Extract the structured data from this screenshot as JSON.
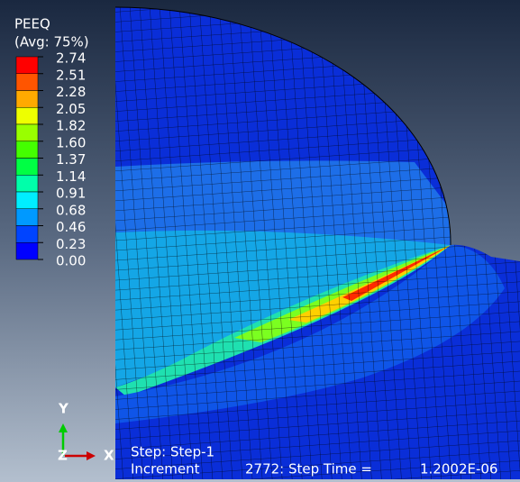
{
  "legend": {
    "title": "PEEQ",
    "subtitle": "(Avg: 75%)",
    "levels": [
      "2.74",
      "2.51",
      "2.28",
      "2.05",
      "1.82",
      "1.60",
      "1.37",
      "1.14",
      "0.91",
      "0.68",
      "0.46",
      "0.23",
      "0.00"
    ],
    "colors": [
      "#ff0000",
      "#ff5500",
      "#ffaa00",
      "#eeff00",
      "#99ff00",
      "#44ff00",
      "#00ff44",
      "#00ffaa",
      "#00eeff",
      "#0099ff",
      "#0044ff",
      "#0000ff"
    ]
  },
  "triad": {
    "y": "Y",
    "z": "Z",
    "x": "X"
  },
  "footer": {
    "step": "Step: Step-1",
    "increment": "Increment",
    "increment_value": "2772: Step Time =",
    "time": "1.2002E-06"
  }
}
